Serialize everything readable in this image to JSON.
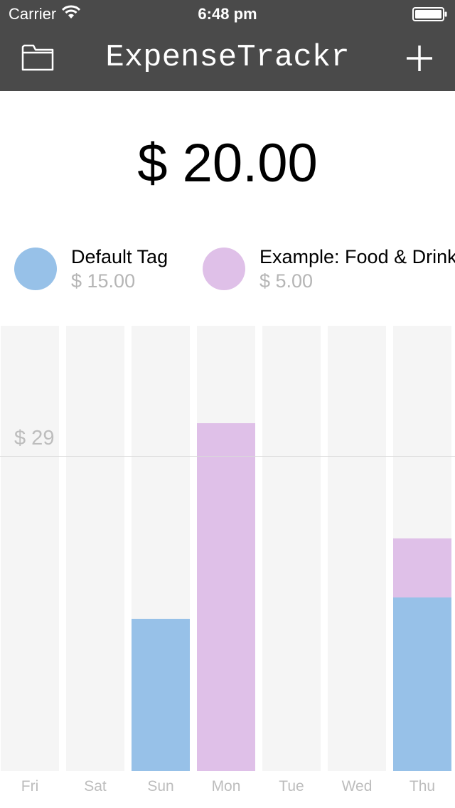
{
  "status_bar": {
    "carrier": "Carrier",
    "time": "6:48 pm"
  },
  "nav": {
    "title": "ExpenseTrackr",
    "left_icon": "folder-icon",
    "right_icon": "plus-icon"
  },
  "total": "$ 20.00",
  "legend": [
    {
      "name": "Default Tag",
      "amount": "$ 15.00",
      "color": "#97c1e8"
    },
    {
      "name": "Example: Food & Drink",
      "amount": "$ 5.00",
      "color": "#dfc0e8"
    }
  ],
  "chart_data": {
    "type": "bar",
    "stacked": true,
    "categories": [
      "Fri",
      "Sat",
      "Sun",
      "Mon",
      "Tue",
      "Wed",
      "Thu"
    ],
    "series": [
      {
        "name": "Default Tag",
        "color": "#97c1e8",
        "values": [
          0,
          0,
          14,
          0,
          0,
          0,
          16
        ]
      },
      {
        "name": "Example: Food & Drink",
        "color": "#dfc0e8",
        "values": [
          0,
          0,
          0,
          32,
          0,
          0,
          5.4
        ]
      }
    ],
    "reference_line": {
      "value": 29,
      "label": "$ 29"
    },
    "ylim": [
      0,
      41
    ],
    "colors": {
      "column_background": "#f5f5f5",
      "tick_label": "#bdbdbd"
    }
  }
}
